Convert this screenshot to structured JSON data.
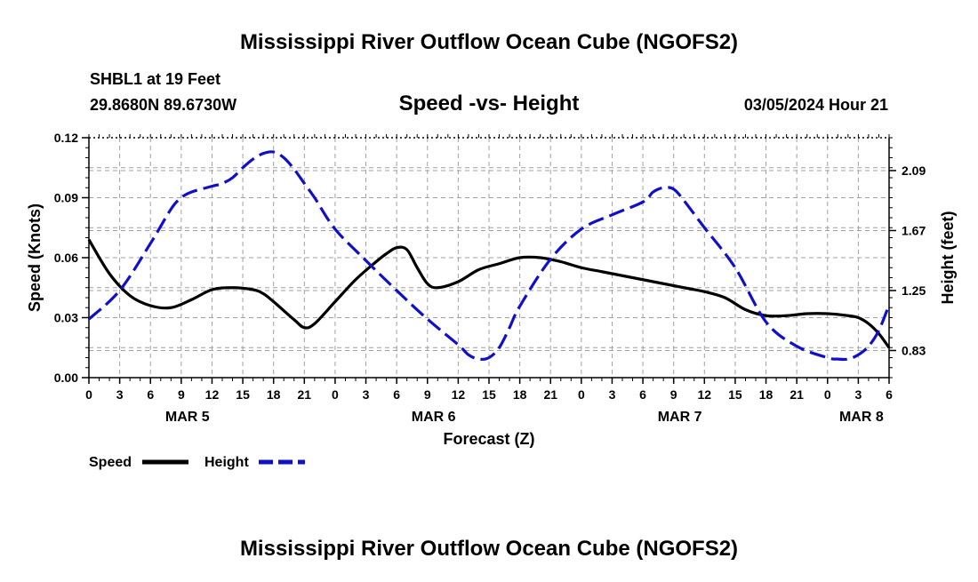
{
  "header": {
    "title": "Mississippi River Outflow Ocean Cube (NGOFS2)",
    "station": "SHBL1 at 19 Feet",
    "coords": "29.8680N  89.6730W",
    "date": "03/05/2024 Hour 21",
    "footer_title": "Mississippi River Outflow Ocean Cube (NGOFS2)"
  },
  "colors": {
    "speed": "#000000",
    "height": "#1010c8",
    "grid": "#a0a0a0"
  },
  "chart_data": {
    "type": "line",
    "title": "Speed -vs- Height",
    "xlabel": "Forecast (Z)",
    "ylabel": "Speed (Knots)",
    "ylabel_right": "Height (feet)",
    "x_range": [
      0,
      78
    ],
    "ylim": [
      0,
      0.12
    ],
    "ylim_right": [
      0.64,
      2.32
    ],
    "y_ticks": [
      "0.00",
      "0.03",
      "0.06",
      "0.09",
      "0.12"
    ],
    "y_tick_values": [
      0,
      0.03,
      0.06,
      0.09,
      0.12
    ],
    "y2_ticks": [
      "0.83",
      "1.25",
      "1.67",
      "2.09"
    ],
    "y2_tick_values": [
      0.83,
      1.25,
      1.67,
      2.09
    ],
    "x_tick_labels": [
      "0",
      "3",
      "6",
      "9",
      "12",
      "15",
      "18",
      "21",
      "0",
      "3",
      "6",
      "9",
      "12",
      "15",
      "18",
      "21",
      "0",
      "3",
      "6",
      "9",
      "12",
      "15",
      "18",
      "21",
      "0",
      "3",
      "6"
    ],
    "x_tick_values": [
      0,
      3,
      6,
      9,
      12,
      15,
      18,
      21,
      24,
      27,
      30,
      33,
      36,
      39,
      42,
      45,
      48,
      51,
      54,
      57,
      60,
      63,
      66,
      69,
      72,
      75,
      78
    ],
    "day_labels": [
      {
        "label": "MAR 5",
        "x": 9.6
      },
      {
        "label": "MAR 6",
        "x": 33.6
      },
      {
        "label": "MAR 7",
        "x": 57.6
      },
      {
        "label": "MAR 8",
        "x": 75.3
      }
    ],
    "series": [
      {
        "name": "Speed",
        "axis": "left",
        "style": "solid",
        "x": [
          0,
          2,
          4,
          6,
          8,
          10,
          12,
          14,
          16,
          17,
          18,
          20,
          21,
          22,
          24,
          26,
          28,
          29,
          30,
          31,
          32,
          33,
          34,
          36,
          38,
          40,
          42,
          44,
          46,
          48,
          50,
          52,
          54,
          56,
          58,
          60,
          62,
          64,
          66,
          68,
          70,
          72,
          74,
          75,
          76,
          77,
          78
        ],
        "values": [
          0.069,
          0.052,
          0.041,
          0.036,
          0.035,
          0.039,
          0.044,
          0.045,
          0.044,
          0.042,
          0.038,
          0.029,
          0.025,
          0.027,
          0.038,
          0.049,
          0.058,
          0.062,
          0.065,
          0.064,
          0.055,
          0.047,
          0.045,
          0.048,
          0.054,
          0.057,
          0.06,
          0.06,
          0.058,
          0.055,
          0.053,
          0.051,
          0.049,
          0.047,
          0.045,
          0.043,
          0.04,
          0.034,
          0.031,
          0.031,
          0.032,
          0.032,
          0.031,
          0.03,
          0.027,
          0.022,
          0.015
        ]
      },
      {
        "name": "Height",
        "axis": "right",
        "style": "dashed",
        "x": [
          0,
          3,
          6,
          8,
          9,
          10,
          12,
          13,
          14,
          15,
          16,
          17,
          18,
          19,
          20,
          21,
          22,
          24,
          27,
          30,
          33,
          36,
          37,
          38,
          39,
          40,
          41,
          42,
          45,
          48,
          51,
          54,
          55,
          56,
          57,
          58,
          60,
          63,
          66,
          69,
          72,
          73,
          74,
          75,
          76,
          77,
          78
        ],
        "values": [
          1.05,
          1.25,
          1.58,
          1.82,
          1.9,
          1.94,
          1.98,
          2.0,
          2.04,
          2.11,
          2.17,
          2.21,
          2.22,
          2.18,
          2.1,
          2.0,
          1.9,
          1.68,
          1.46,
          1.25,
          1.05,
          0.87,
          0.8,
          0.77,
          0.78,
          0.85,
          0.99,
          1.14,
          1.47,
          1.68,
          1.78,
          1.87,
          1.94,
          1.97,
          1.96,
          1.88,
          1.69,
          1.41,
          1.03,
          0.86,
          0.78,
          0.77,
          0.77,
          0.8,
          0.86,
          0.97,
          1.15
        ]
      }
    ],
    "legend": [
      {
        "name": "Speed",
        "style": "solid"
      },
      {
        "name": "Height",
        "style": "dashed"
      }
    ],
    "legend_position": "bottom-left",
    "grid": true
  }
}
